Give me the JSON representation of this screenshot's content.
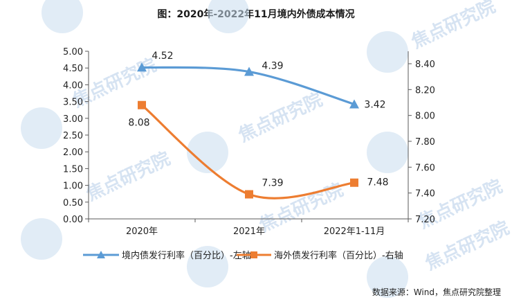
{
  "title": "图：2020年-2022年11月境内外债成本情况",
  "source": "数据来源：Wind，焦点研究院整理",
  "watermark": {
    "text": "焦点研究院",
    "color": "#c9dcef"
  },
  "colors": {
    "left_series": "#5b9bd5",
    "right_series": "#ed7d31",
    "grid": "#d9d9d9",
    "axis": "#595959"
  },
  "chart_data": {
    "type": "line",
    "categories": [
      "2020年",
      "2021年",
      "2022年1-11月"
    ],
    "series": [
      {
        "name": "境内债发行利率（百分比）-左轴",
        "axis": "left",
        "marker": "triangle",
        "color": "#5b9bd5",
        "values": [
          4.52,
          4.39,
          3.42
        ]
      },
      {
        "name": "海外债发行利率（百分比）-右轴",
        "axis": "right",
        "marker": "square",
        "color": "#ed7d31",
        "values": [
          8.08,
          7.39,
          7.48
        ]
      }
    ],
    "y_left": {
      "min": 0,
      "max": 5,
      "step": 0.5,
      "ticks": [
        "0.00",
        "0.50",
        "1.00",
        "1.50",
        "2.00",
        "2.50",
        "3.00",
        "3.50",
        "4.00",
        "4.50",
        "5.00"
      ]
    },
    "y_right": {
      "min": 7.2,
      "max": 8.5,
      "ticks": [
        "7.20",
        "7.40",
        "7.60",
        "7.80",
        "8.00",
        "8.20",
        "8.40"
      ]
    },
    "data_labels": [
      {
        "series": 0,
        "text": [
          "4.52",
          "4.39",
          "3.42"
        ]
      },
      {
        "series": 1,
        "text": [
          "8.08",
          "7.39",
          "7.48"
        ]
      }
    ],
    "grid": false,
    "legend": "bottom"
  }
}
